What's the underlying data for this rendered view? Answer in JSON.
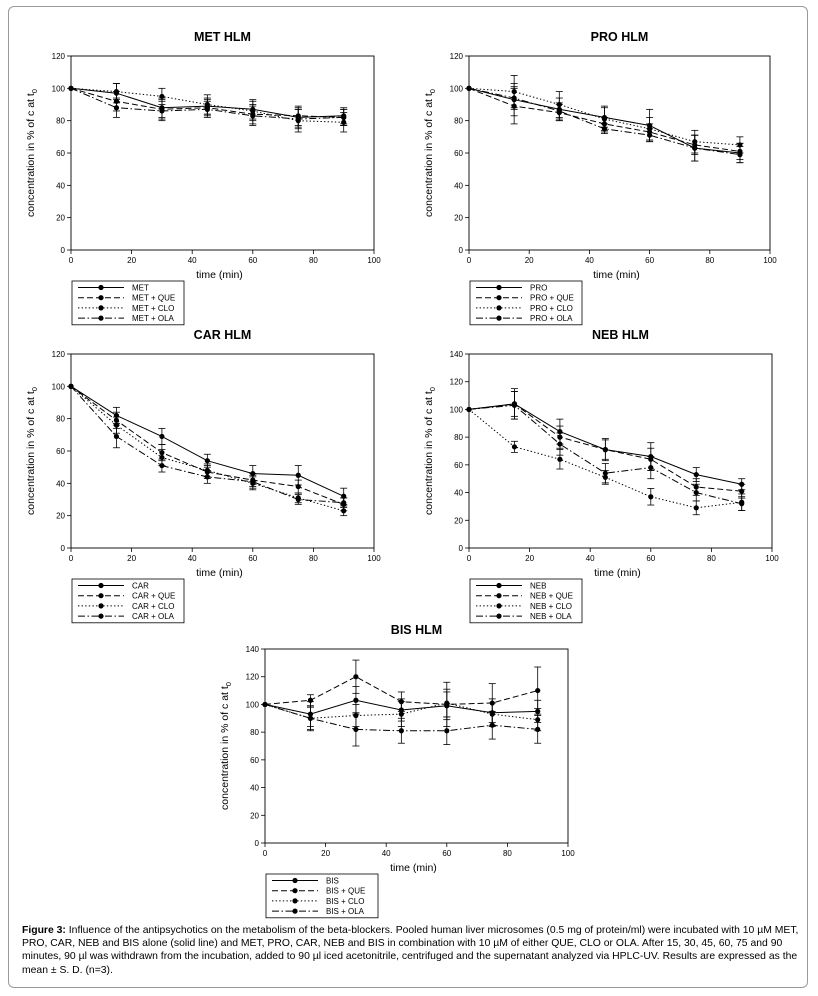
{
  "caption": {
    "label": "Figure 3:",
    "text": "Influence of the antipsychotics on the metabolism of the beta-blockers. Pooled human liver microsomes (0.5 mg of protein/ml) were incubated with 10 µM MET, PRO, CAR, NEB and BIS alone (solid line) and MET, PRO, CAR, NEB and BIS in combination with 10 µM of either QUE, CLO or OLA. After 15, 30, 45, 60, 75 and 90 minutes, 90 µl was withdrawn from the incubation, added to 90 µl iced acetonitrile, centrifuged and the supernatant analyzed via HPLC-UV. Results are expressed as the mean ± S. D. (n=3)."
  },
  "chart_data": [
    {
      "type": "line",
      "title": "MET HLM",
      "xlabel": "time (min)",
      "ylabel": "concentration in % of c at t",
      "ylabel_sub": "0",
      "x": [
        0,
        15,
        30,
        45,
        60,
        75,
        90
      ],
      "xlim": [
        0,
        100
      ],
      "ylim": [
        0,
        120
      ],
      "xticks": [
        0,
        20,
        40,
        60,
        80,
        100
      ],
      "yticks": [
        0,
        20,
        40,
        60,
        80,
        100,
        120
      ],
      "grid": false,
      "legend_position": "bottom-left",
      "series": [
        {
          "name": "MET",
          "style": "solid",
          "values": [
            100,
            97,
            88,
            89,
            87,
            82,
            83
          ],
          "errors": [
            0,
            6,
            6,
            5,
            6,
            6,
            5
          ]
        },
        {
          "name": "MET + QUE",
          "style": "dashed",
          "values": [
            100,
            92,
            87,
            88,
            84,
            83,
            82
          ],
          "errors": [
            0,
            6,
            6,
            5,
            6,
            6,
            5
          ]
        },
        {
          "name": "MET + CLO",
          "style": "dotted",
          "values": [
            100,
            98,
            95,
            90,
            86,
            80,
            79
          ],
          "errors": [
            0,
            5,
            5,
            6,
            6,
            7,
            6
          ]
        },
        {
          "name": "MET + OLA",
          "style": "dashdot",
          "values": [
            100,
            88,
            86,
            87,
            83,
            81,
            82
          ],
          "errors": [
            0,
            6,
            6,
            5,
            6,
            6,
            5
          ]
        }
      ]
    },
    {
      "type": "line",
      "title": "PRO HLM",
      "xlabel": "time (min)",
      "ylabel": "concentration in % of c at t",
      "ylabel_sub": "0",
      "x": [
        0,
        15,
        30,
        45,
        60,
        75,
        90
      ],
      "xlim": [
        0,
        100
      ],
      "ylim": [
        0,
        120
      ],
      "xticks": [
        0,
        20,
        40,
        60,
        80,
        100
      ],
      "yticks": [
        0,
        20,
        40,
        60,
        80,
        100,
        120
      ],
      "grid": false,
      "legend_position": "bottom-left",
      "series": [
        {
          "name": "PRO",
          "style": "solid",
          "values": [
            100,
            93,
            87,
            82,
            77,
            63,
            60
          ],
          "errors": [
            0,
            10,
            7,
            6,
            10,
            8,
            6
          ]
        },
        {
          "name": "PRO + QUE",
          "style": "dashed",
          "values": [
            100,
            89,
            85,
            78,
            73,
            65,
            61
          ],
          "errors": [
            0,
            11,
            5,
            4,
            5,
            6,
            5
          ]
        },
        {
          "name": "PRO + CLO",
          "style": "dotted",
          "values": [
            100,
            98,
            90,
            81,
            75,
            67,
            65
          ],
          "errors": [
            0,
            10,
            8,
            8,
            7,
            7,
            5
          ]
        },
        {
          "name": "PRO + OLA",
          "style": "dashdot",
          "values": [
            100,
            94,
            86,
            75,
            71,
            63,
            59
          ],
          "errors": [
            0,
            7,
            5,
            3,
            4,
            8,
            5
          ]
        }
      ]
    },
    {
      "type": "line",
      "title": "CAR HLM",
      "xlabel": "time (min)",
      "ylabel": "concentration in % of c at t",
      "ylabel_sub": "0",
      "x": [
        0,
        15,
        30,
        45,
        60,
        75,
        90
      ],
      "xlim": [
        0,
        100
      ],
      "ylim": [
        0,
        120
      ],
      "xticks": [
        0,
        20,
        40,
        60,
        80,
        100
      ],
      "yticks": [
        0,
        20,
        40,
        60,
        80,
        100,
        120
      ],
      "grid": false,
      "legend_position": "bottom-left",
      "series": [
        {
          "name": "CAR",
          "style": "solid",
          "values": [
            100,
            82,
            69,
            54,
            46,
            45,
            32
          ],
          "errors": [
            0,
            5,
            5,
            4,
            5,
            6,
            5
          ]
        },
        {
          "name": "CAR + QUE",
          "style": "dashed",
          "values": [
            100,
            79,
            59,
            47,
            42,
            38,
            27
          ],
          "errors": [
            0,
            5,
            5,
            4,
            4,
            4,
            4
          ]
        },
        {
          "name": "CAR + CLO",
          "style": "dotted",
          "values": [
            100,
            76,
            56,
            48,
            40,
            31,
            23
          ],
          "errors": [
            0,
            5,
            5,
            4,
            4,
            3,
            3
          ]
        },
        {
          "name": "CAR + OLA",
          "style": "dashdot",
          "values": [
            100,
            69,
            51,
            44,
            41,
            30,
            28
          ],
          "errors": [
            0,
            7,
            4,
            4,
            4,
            3,
            3
          ]
        }
      ]
    },
    {
      "type": "line",
      "title": "NEB HLM",
      "xlabel": "time (min)",
      "ylabel": "concentration in % of c at t",
      "ylabel_sub": "0",
      "x": [
        0,
        15,
        30,
        45,
        60,
        75,
        90
      ],
      "xlim": [
        0,
        100
      ],
      "ylim": [
        0,
        140
      ],
      "xticks": [
        0,
        20,
        40,
        60,
        80,
        100
      ],
      "yticks": [
        0,
        20,
        40,
        60,
        80,
        100,
        120,
        140
      ],
      "grid": false,
      "legend_position": "bottom-left",
      "series": [
        {
          "name": "NEB",
          "style": "solid",
          "values": [
            100,
            104,
            84,
            71,
            66,
            53,
            46
          ],
          "errors": [
            0,
            11,
            9,
            8,
            10,
            5,
            4
          ]
        },
        {
          "name": "NEB + QUE",
          "style": "dashed",
          "values": [
            100,
            104,
            80,
            71,
            64,
            44,
            41
          ],
          "errors": [
            0,
            9,
            8,
            7,
            8,
            6,
            5
          ]
        },
        {
          "name": "NEB + CLO",
          "style": "dotted",
          "values": [
            100,
            73,
            64,
            51,
            37,
            29,
            33
          ],
          "errors": [
            0,
            4,
            7,
            5,
            6,
            5,
            6
          ]
        },
        {
          "name": "NEB + OLA",
          "style": "dashdot",
          "values": [
            100,
            103,
            75,
            54,
            58,
            40,
            32
          ],
          "errors": [
            0,
            10,
            8,
            7,
            8,
            6,
            5
          ]
        }
      ]
    },
    {
      "type": "line",
      "title": "BIS HLM",
      "xlabel": "time (min)",
      "ylabel": "concentration in % of c at t",
      "ylabel_sub": "0",
      "x": [
        0,
        15,
        30,
        45,
        60,
        75,
        90
      ],
      "xlim": [
        0,
        100
      ],
      "ylim": [
        0,
        140
      ],
      "xticks": [
        0,
        20,
        40,
        60,
        80,
        100
      ],
      "yticks": [
        0,
        20,
        40,
        60,
        80,
        100,
        120,
        140
      ],
      "grid": false,
      "legend_position": "bottom-left",
      "series": [
        {
          "name": "BIS",
          "style": "solid",
          "values": [
            100,
            93,
            103,
            96,
            99,
            94,
            95
          ],
          "errors": [
            0,
            9,
            10,
            8,
            10,
            10,
            8
          ]
        },
        {
          "name": "BIS + QUE",
          "style": "dashed",
          "values": [
            100,
            103,
            120,
            102,
            100,
            101,
            110
          ],
          "errors": [
            0,
            4,
            12,
            7,
            16,
            14,
            17
          ]
        },
        {
          "name": "BIS + CLO",
          "style": "dotted",
          "values": [
            100,
            90,
            92,
            93,
            101,
            93,
            89
          ],
          "errors": [
            0,
            8,
            8,
            9,
            10,
            8,
            8
          ]
        },
        {
          "name": "BIS + OLA",
          "style": "dashdot",
          "values": [
            100,
            90,
            82,
            81,
            81,
            85,
            82
          ],
          "errors": [
            0,
            9,
            12,
            9,
            10,
            10,
            10
          ]
        }
      ]
    }
  ]
}
